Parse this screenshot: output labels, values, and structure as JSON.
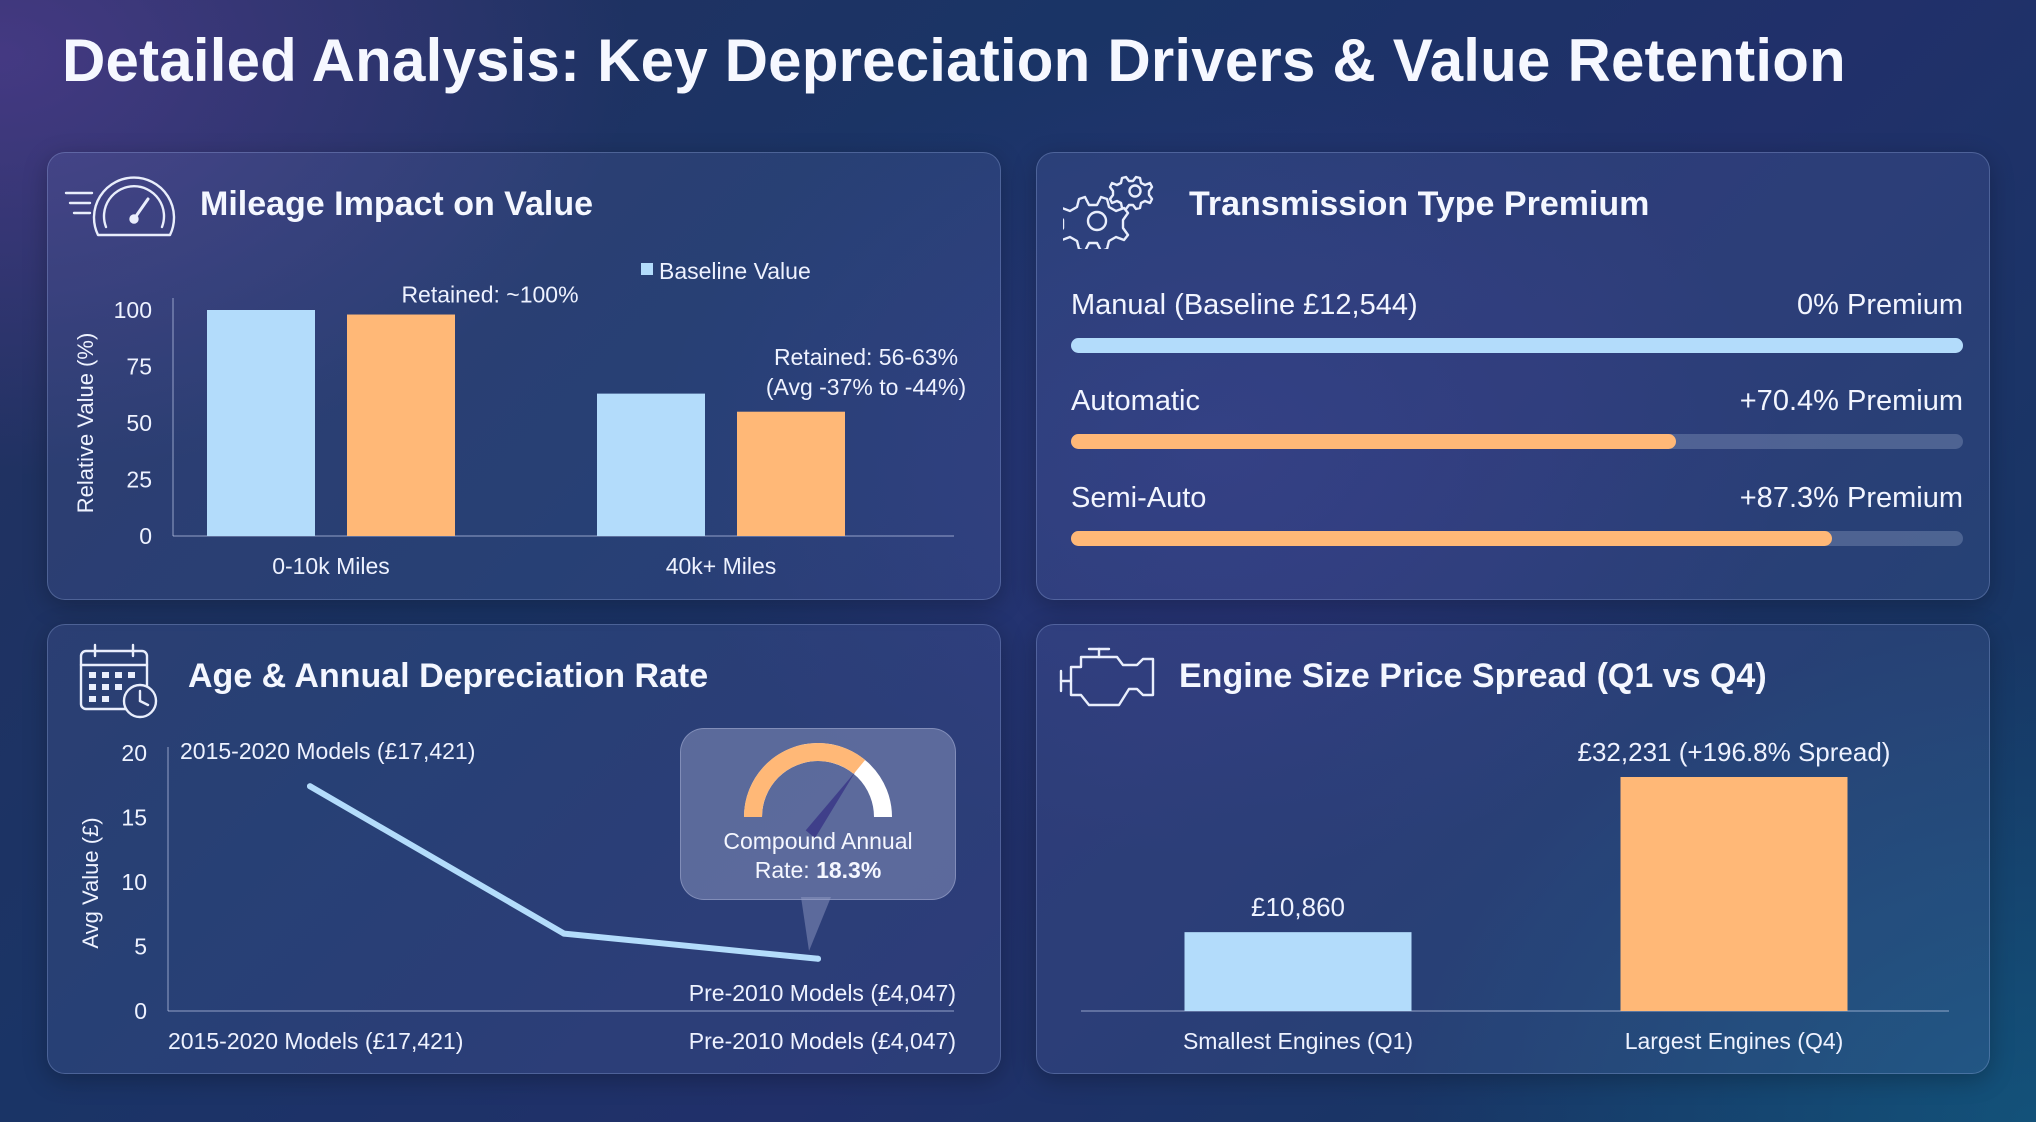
{
  "page": {
    "title": "Detailed Analysis: Key Depreciation Drivers & Value Retention"
  },
  "colors": {
    "baseline": "#b3dcfb",
    "highlight": "#ffb877",
    "track": "#5f6f96"
  },
  "panels": {
    "mileage": {
      "title": "Mileage Impact on Value",
      "icon": "speedometer-icon"
    },
    "transmission": {
      "title": "Transmission Type Premium",
      "icon": "gears-icon"
    },
    "age": {
      "title": "Age & Annual Depreciation Rate",
      "icon": "calendar-clock-icon"
    },
    "engine": {
      "title": "Engine Size Price Spread (Q1 vs Q4)",
      "icon": "engine-icon"
    }
  },
  "chart_data": [
    {
      "id": "mileage",
      "type": "bar",
      "title": "Mileage Impact on Value",
      "ylabel": "Relative Value (%)",
      "xlabel": "",
      "ylim": [
        0,
        100
      ],
      "yticks": [
        0,
        25,
        50,
        75,
        100
      ],
      "grid": false,
      "legend": {
        "placement": "top",
        "entries": [
          "Baseline Value"
        ]
      },
      "categories": [
        "0-10k Miles",
        "40k+ Miles"
      ],
      "series": [
        {
          "name": "Baseline Value",
          "values": [
            100,
            63
          ],
          "color": "#b3dcfb"
        },
        {
          "values": [
            98,
            55
          ],
          "color": "#ffb877"
        }
      ],
      "annotations": [
        {
          "text": "Retained: ~100%",
          "category": "0-10k Miles"
        },
        {
          "text": "Retained: 56-63%",
          "text2": "(Avg -37% to -44%)",
          "category": "40k+ Miles"
        }
      ]
    },
    {
      "id": "transmission",
      "type": "bar",
      "orientation": "horizontal",
      "title": "Transmission Type Premium",
      "categories": [
        "Manual (Baseline £12,544)",
        "Automatic",
        "Semi-Auto"
      ],
      "value_labels": [
        "0% Premium",
        "+70.4% Premium",
        "+87.3% Premium"
      ],
      "fill_fractions": [
        1.0,
        0.678,
        0.853
      ],
      "colors": [
        "#b3dcfb",
        "#ffb877",
        "#ffb877"
      ]
    },
    {
      "id": "age",
      "type": "line",
      "title": "Age & Annual Depreciation Rate",
      "ylabel": "Avg Value (£)",
      "xlabel": "",
      "ylim": [
        0,
        20
      ],
      "yticks": [
        0,
        5,
        10,
        15,
        20
      ],
      "grid": false,
      "x_labels": [
        "2015-2020 Models (£17,421)",
        "Pre-2010 Models (£4,047)"
      ],
      "series": [
        {
          "values": [
            17.421,
            6.0,
            4.047
          ],
          "color": "#b3dcfb"
        }
      ],
      "point_labels": [
        "2015-2020 Models (£17,421)",
        "Pre-2010 Models (£4,047)"
      ],
      "callout": {
        "line1": "Compound Annual",
        "line2_prefix": "Rate: ",
        "line2_value": "18.3%",
        "gauge_fraction": 0.72
      }
    },
    {
      "id": "engine",
      "type": "bar",
      "title": "Engine Size Price Spread (Q1 vs Q4)",
      "categories": [
        "Smallest Engines (Q1)",
        "Largest Engines (Q4)"
      ],
      "values": [
        10860,
        32231
      ],
      "value_labels": [
        "£10,860",
        "£32,231 (+196.8% Spread)"
      ],
      "ylim": [
        0,
        32231
      ],
      "colors": [
        "#b3dcfb",
        "#ffb877"
      ]
    }
  ]
}
